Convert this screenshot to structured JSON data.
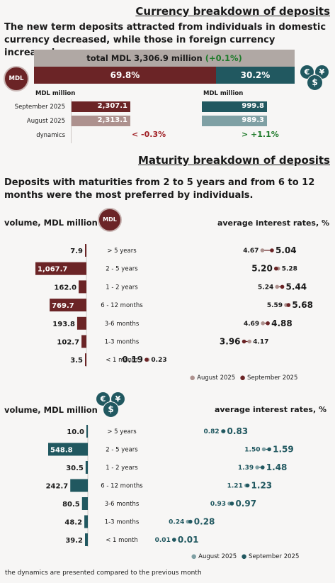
{
  "currency": {
    "title": "Currency breakdown of deposits",
    "intro": "The new term deposits attracted from individuals in domestic currency decreased, while those in foreign currency increased.",
    "total_prefix": "total MDL 3,306.9 million ",
    "total_change": "(+0.1%)",
    "mdl_share_label": "69.8%",
    "mdl_share": 69.8,
    "fx_share_label": "30.2%",
    "fx_share": 30.2,
    "mdl_badge": "MDL",
    "mdl_unit": "MDL million",
    "fx_unit": "MDL million",
    "rows": [
      {
        "label": "September 2025",
        "mdl": "2,307.1",
        "fx": "999.8"
      },
      {
        "label": "August 2025",
        "mdl": "2,313.1",
        "fx": "989.3"
      }
    ],
    "dynamics_label": "dynamics",
    "mdl_dynamics": "< -0.3%",
    "fx_dynamics": "> +1.1%",
    "colors": {
      "mdl": "#6b2426",
      "mdl_light": "#ad918e",
      "fx": "#215860",
      "fx_light": "#7fa0a4",
      "grey": "#b0a8a4"
    }
  },
  "maturity": {
    "title": "Maturity breakdown of deposits",
    "intro": "Deposits with maturities from 2 to 5 years and from 6 to 12 months were the most preferred by individuals."
  },
  "mdl_panel": {
    "volume_label": "volume, MDL million",
    "rates_label": "average interest rates, %",
    "badge": "MDL",
    "legend_aug": "August 2025",
    "legend_sep": "September 2025"
  },
  "fx_panel": {
    "volume_label": "volume, MDL million",
    "rates_label": "average interest rates, %",
    "legend_aug": "August 2025",
    "legend_sep": "September 2025"
  },
  "footnote": "the dynamics are presented compared to the previous month",
  "chart_data": [
    {
      "type": "bar",
      "title": "volume, MDL million (MDL)",
      "categories": [
        "> 5 years",
        "2 - 5 years",
        "1 - 2 years",
        "6 - 12 months",
        "3-6 months",
        "1-3 months",
        "< 1 month"
      ],
      "values": [
        7.9,
        1067.7,
        162.0,
        769.7,
        193.8,
        102.7,
        3.5
      ],
      "labels": [
        "7.9",
        "1,067.7",
        "162.0",
        "769.7",
        "193.8",
        "102.7",
        "3.5"
      ]
    },
    {
      "type": "scatter",
      "title": "average interest rates, % (MDL)",
      "categories": [
        "> 5 years",
        "2 - 5 years",
        "1 - 2 years",
        "6 - 12 months",
        "3-6 months",
        "1-3 months",
        "< 1 month"
      ],
      "series": [
        {
          "name": "August 2025",
          "values": [
            4.67,
            5.28,
            5.24,
            5.59,
            4.69,
            4.17,
            0.23
          ],
          "labels": [
            "4.67",
            "5.28",
            "5.24",
            "5.59",
            "4.69",
            "4.17",
            "0.23"
          ]
        },
        {
          "name": "September 2025",
          "values": [
            5.04,
            5.2,
            5.44,
            5.68,
            4.88,
            3.96,
            0.19
          ],
          "labels": [
            "5.04",
            "5.20",
            "5.44",
            "5.68",
            "4.88",
            "3.96",
            "0.19"
          ]
        }
      ]
    },
    {
      "type": "bar",
      "title": "volume, MDL million (foreign currency)",
      "categories": [
        "> 5 years",
        "2 - 5 years",
        "1 - 2 years",
        "6 - 12 months",
        "3-6 months",
        "1-3 months",
        "< 1 month"
      ],
      "values": [
        10.0,
        548.8,
        30.5,
        242.7,
        80.5,
        48.2,
        39.2
      ],
      "labels": [
        "10.0",
        "548.8",
        "30.5",
        "242.7",
        "80.5",
        "48.2",
        "39.2"
      ]
    },
    {
      "type": "scatter",
      "title": "average interest rates, % (foreign currency)",
      "categories": [
        "> 5 years",
        "2 - 5 years",
        "1 - 2 years",
        "6 - 12 months",
        "3-6 months",
        "1-3 months",
        "< 1 month"
      ],
      "series": [
        {
          "name": "August 2025",
          "values": [
            0.82,
            1.5,
            1.39,
            1.21,
            0.93,
            0.24,
            0.01
          ],
          "labels": [
            "0.82",
            "1.50",
            "1.39",
            "1.21",
            "0.93",
            "0.24",
            "0.01"
          ]
        },
        {
          "name": "September 2025",
          "values": [
            0.83,
            1.59,
            1.48,
            1.23,
            0.97,
            0.28,
            0.01
          ],
          "labels": [
            "0.83",
            "1.59",
            "1.48",
            "1.23",
            "0.97",
            "0.28",
            "0.01"
          ]
        }
      ]
    }
  ]
}
